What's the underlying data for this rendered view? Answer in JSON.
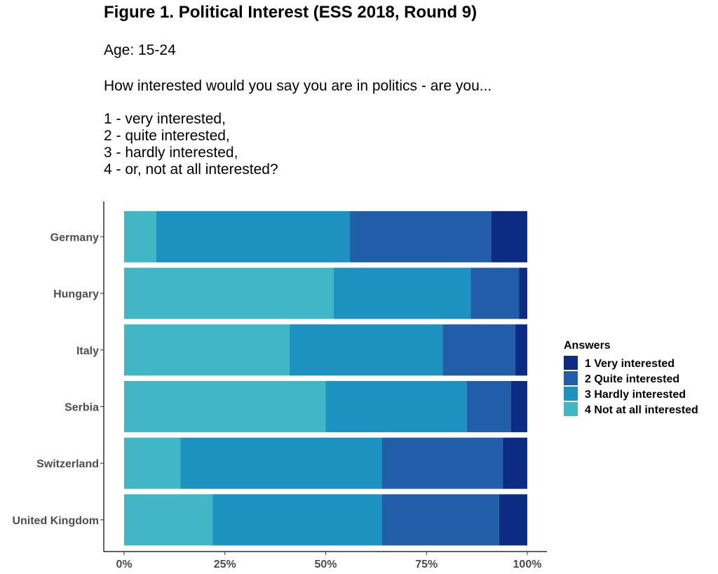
{
  "figure": {
    "title": "Figure 1. Political Interest (ESS 2018, Round 9)",
    "age_line": "Age: 15-24",
    "question": "How interested would you say you are in politics - are you...",
    "options": [
      "1 -  very interested,",
      "2 -  quite interested,",
      "3 -  hardly interested,",
      "4 -  or, not at all interested?"
    ]
  },
  "chart_data": {
    "type": "bar",
    "orientation": "horizontal",
    "stacked": true,
    "normalized": true,
    "categories": [
      "Germany",
      "Hungary",
      "Italy",
      "Serbia",
      "Switzerland",
      "United Kingdom"
    ],
    "series": [
      {
        "name": "4 Not at all interested",
        "color": "#41b6c4",
        "values": [
          8,
          52,
          41,
          50,
          14,
          22
        ]
      },
      {
        "name": "3 Hardly interested",
        "color": "#1d91c0",
        "values": [
          48,
          34,
          38,
          35,
          50,
          42
        ]
      },
      {
        "name": "2 Quite interested",
        "color": "#225ea8",
        "values": [
          35,
          12,
          18,
          11,
          30,
          29
        ]
      },
      {
        "name": "1 Very interested",
        "color": "#0c2c84",
        "values": [
          9,
          2,
          3,
          4,
          6,
          7
        ]
      }
    ],
    "xlim": [
      0,
      100
    ],
    "xticks": [
      0,
      25,
      50,
      75,
      100
    ],
    "xtick_labels": [
      "0%",
      "25%",
      "50%",
      "75%",
      "100%"
    ],
    "legend": {
      "title": "Answers",
      "position": "right",
      "order": [
        "1 Very interested",
        "2 Quite interested",
        "3 Hardly interested",
        "4 Not at all interested"
      ]
    },
    "grid": false
  }
}
